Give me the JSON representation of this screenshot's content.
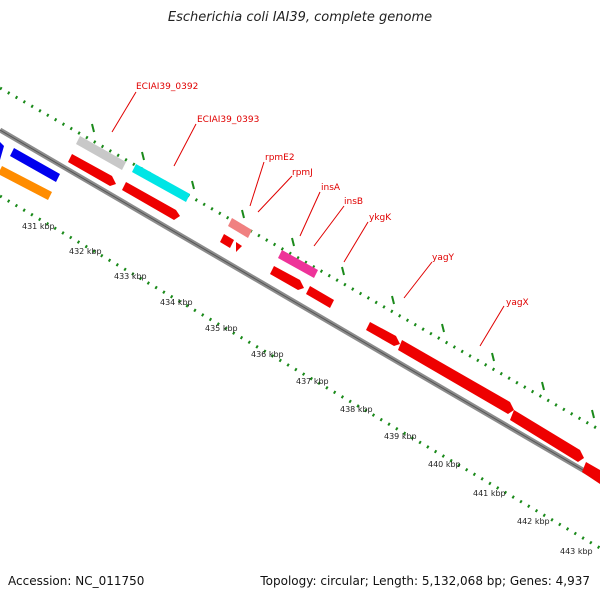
{
  "title": "Escherichia coli IAI39, complete genome",
  "footer": {
    "accession": "Accession: NC_011750",
    "topology": "Topology: circular; Length: 5,132,068 bp; Genes: 4,937"
  },
  "colors": {
    "backbone": "#8c8c8c",
    "tick": "#1a8a1a",
    "gene_default": "#ff0000",
    "label_text": "#e00000"
  },
  "gene_labels": [
    {
      "name": "ECIAI39_0392",
      "feature": "gray-gene"
    },
    {
      "name": "ECIAI39_0393",
      "feature": "cyan-gene"
    },
    {
      "name": "rpmE2",
      "feature": "pink-gene"
    },
    {
      "name": "rpmJ",
      "feature": "small-red-gene"
    },
    {
      "name": "insA",
      "feature": "magenta-gene"
    },
    {
      "name": "insB",
      "feature": "red-gene-insB"
    },
    {
      "name": "ykgK",
      "feature": "red-gene-ykgK"
    },
    {
      "name": "yagY",
      "feature": "red-gene-yagY"
    },
    {
      "name": "yagX",
      "feature": "red-gene-yagX"
    }
  ],
  "kbp_ticks": [
    "431 kbp",
    "432 kbp",
    "433 kbp",
    "434 kbp",
    "435 kbp",
    "436 kbp",
    "437 kbp",
    "438 kbp",
    "439 kbp",
    "440 kbp",
    "441 kbp",
    "442 kbp",
    "443 kbp"
  ]
}
